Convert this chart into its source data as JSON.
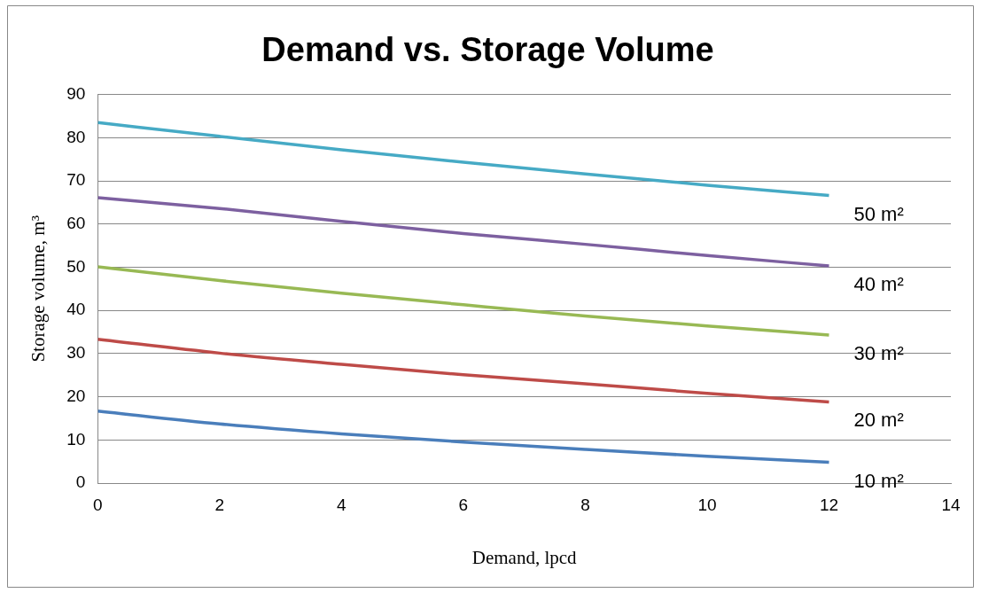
{
  "chart_data": {
    "type": "line",
    "title": "Demand vs. Storage Volume",
    "xlabel": "Demand, lpcd",
    "ylabel": "Storage volume, m³",
    "x": [
      0,
      2,
      4,
      6,
      8,
      10,
      12
    ],
    "series": [
      {
        "name": "10 m²",
        "color": "#4a7ebb",
        "values": [
          16.7,
          13.7,
          11.4,
          9.5,
          7.8,
          6.2,
          4.8
        ]
      },
      {
        "name": "20 m²",
        "color": "#be4b48",
        "values": [
          33.3,
          30.1,
          27.5,
          25.1,
          23.0,
          20.8,
          18.8
        ]
      },
      {
        "name": "30 m²",
        "color": "#98b954",
        "values": [
          50.1,
          46.9,
          44.0,
          41.3,
          38.7,
          36.4,
          34.3
        ]
      },
      {
        "name": "40 m²",
        "color": "#7d60a0",
        "values": [
          66.1,
          63.6,
          60.6,
          57.8,
          55.3,
          52.7,
          50.3
        ]
      },
      {
        "name": "50 m²",
        "color": "#46aac5",
        "values": [
          83.5,
          80.3,
          77.2,
          74.3,
          71.6,
          69.0,
          66.6
        ]
      }
    ],
    "xlim": [
      0,
      14
    ],
    "xticks": [
      0,
      2,
      4,
      6,
      8,
      10,
      12,
      14
    ],
    "ylim": [
      0,
      90
    ],
    "yticks": [
      0,
      10,
      20,
      30,
      40,
      50,
      60,
      70,
      80,
      90
    ],
    "grid": "y",
    "legend": false,
    "marker": "none",
    "line_style": "solid"
  }
}
